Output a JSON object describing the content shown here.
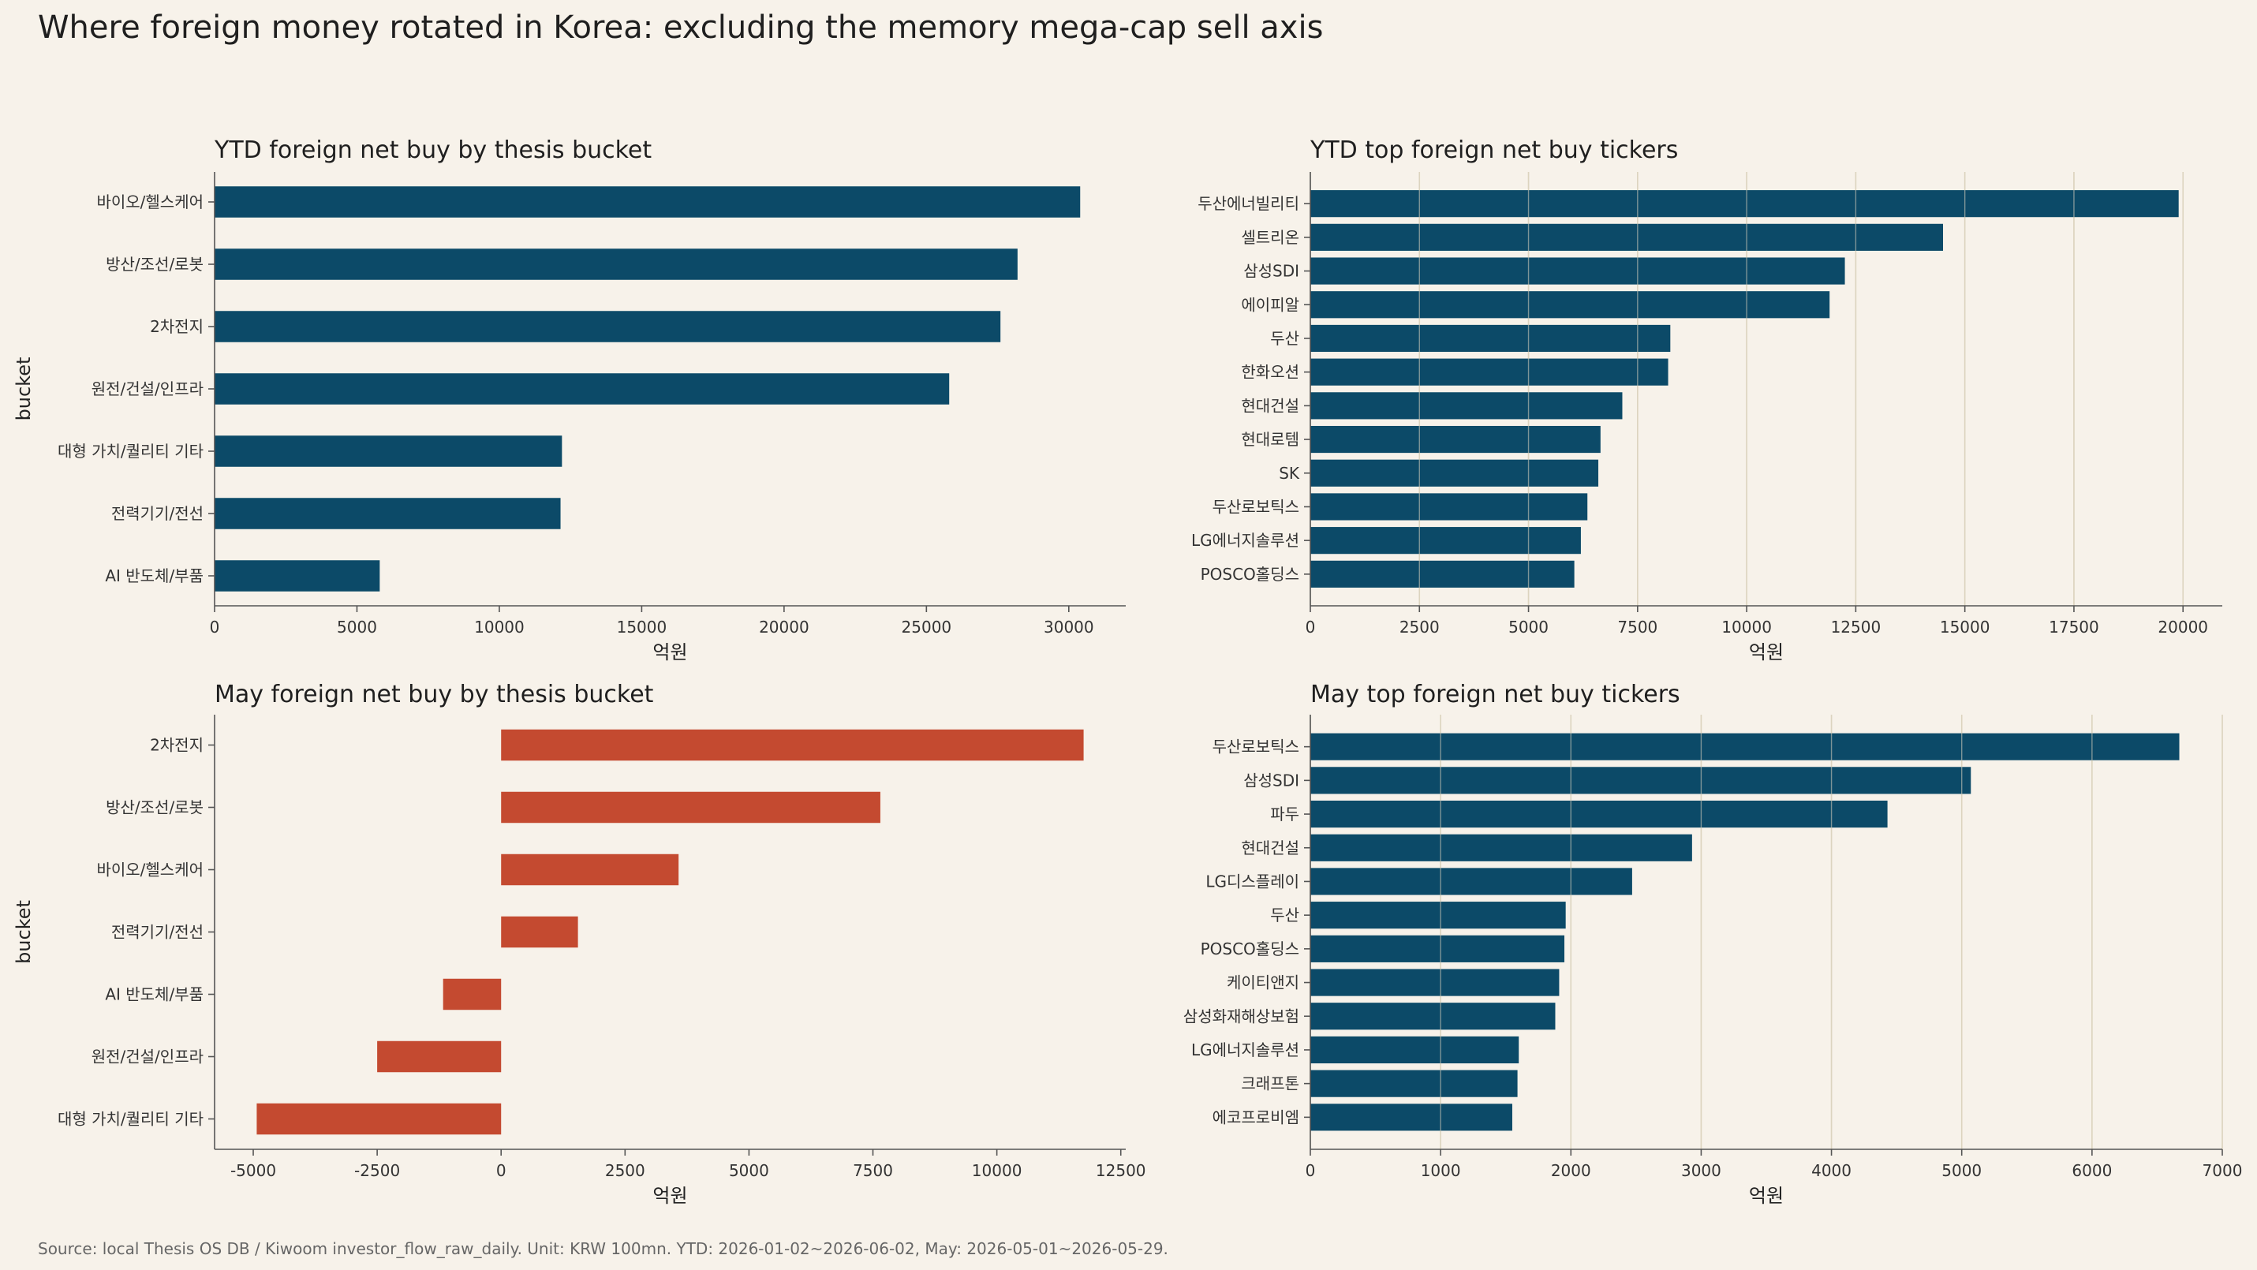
{
  "title": "Where foreign money rotated in Korea: excluding the memory mega-cap sell axis",
  "source_note": "Source: local Thesis OS DB / Kiwoom investor_flow_raw_daily. Unit: KRW 100mn. YTD: 2026-01-02~2026-06-02, May: 2026-05-01~2026-05-29.",
  "colors": {
    "background": "#f7f2ea",
    "navy": "#0c4a68",
    "red": "#c44a30",
    "grid": "#dcd4bf"
  },
  "chart_data": [
    {
      "type": "bar",
      "orientation": "horizontal",
      "title": "YTD foreign net buy by thesis bucket",
      "xlabel": "억원",
      "ylabel": "bucket",
      "color": "#0c4a68",
      "xlim": [
        0,
        32000
      ],
      "xticks": [
        0,
        5000,
        10000,
        15000,
        20000,
        25000,
        30000
      ],
      "grid": false,
      "categories": [
        "바이오/헬스케어",
        "방산/조선/로봇",
        "2차전지",
        "원전/건설/인프라",
        "대형 가치/퀄리티 기타",
        "전력기기/전선",
        "AI 반도체/부품"
      ],
      "values": [
        30400,
        28200,
        27600,
        25800,
        12200,
        12150,
        5800
      ]
    },
    {
      "type": "bar",
      "orientation": "horizontal",
      "title": "YTD top foreign net buy tickers",
      "xlabel": "억원",
      "ylabel": "",
      "color": "#0c4a68",
      "xlim": [
        0,
        20900
      ],
      "xticks": [
        0,
        2500,
        5000,
        7500,
        10000,
        12500,
        15000,
        17500,
        20000
      ],
      "grid": true,
      "categories": [
        "두산에너빌리티",
        "셀트리온",
        "삼성SDI",
        "에이피알",
        "두산",
        "한화오션",
        "현대건설",
        "현대로템",
        "SK",
        "두산로보틱스",
        "LG에너지솔루션",
        "POSCO홀딩스"
      ],
      "values": [
        19900,
        14500,
        12250,
        11900,
        8250,
        8200,
        7150,
        6650,
        6600,
        6350,
        6200,
        6050
      ]
    },
    {
      "type": "bar",
      "orientation": "horizontal",
      "title": "May foreign net buy by thesis bucket",
      "xlabel": "억원",
      "ylabel": "bucket",
      "color": "#c44a30",
      "xlim": [
        -5780,
        12600
      ],
      "xticks": [
        -5000,
        -2500,
        0,
        2500,
        5000,
        7500,
        10000,
        12500
      ],
      "grid": false,
      "categories": [
        "2차전지",
        "방산/조선/로봇",
        "바이오/헬스케어",
        "전력기기/전선",
        "AI 반도체/부품",
        "원전/건설/인프라",
        "대형 가치/퀄리티 기타"
      ],
      "values": [
        11750,
        7650,
        3580,
        1550,
        -1170,
        -2500,
        -4930
      ]
    },
    {
      "type": "bar",
      "orientation": "horizontal",
      "title": "May top foreign net buy tickers",
      "xlabel": "억원",
      "ylabel": "",
      "color": "#0c4a68",
      "xlim": [
        0,
        7000
      ],
      "xticks": [
        0,
        1000,
        2000,
        3000,
        4000,
        5000,
        6000,
        7000
      ],
      "grid": true,
      "categories": [
        "두산로보틱스",
        "삼성SDI",
        "파두",
        "현대건설",
        "LG디스플레이",
        "두산",
        "POSCO홀딩스",
        "케이티앤지",
        "삼성화재해상보험",
        "LG에너지솔루션",
        "크래프톤",
        "에코프로비엠"
      ],
      "values": [
        6670,
        5070,
        4430,
        2930,
        2470,
        1960,
        1950,
        1910,
        1880,
        1600,
        1590,
        1550
      ]
    }
  ]
}
